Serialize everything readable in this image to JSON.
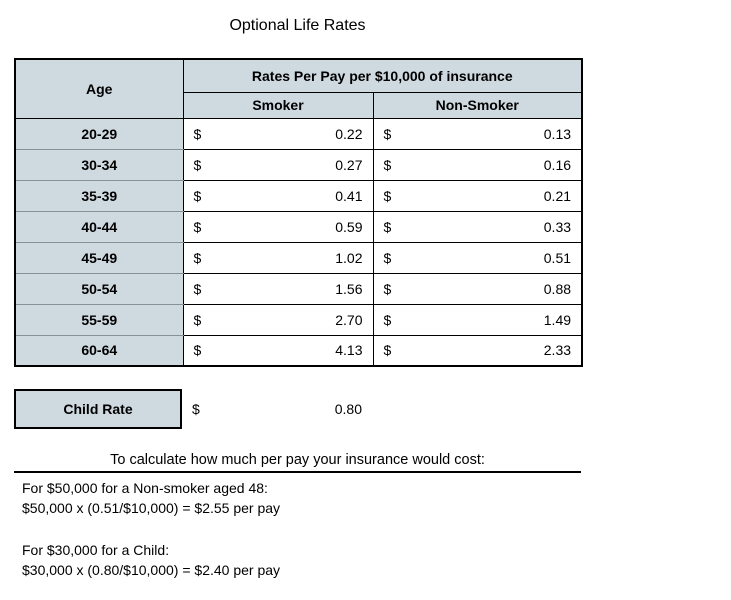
{
  "title": "Optional Life Rates",
  "colors": {
    "header_bg": "#cfd9e0",
    "border": "#000000",
    "age_row_separator": "#849198"
  },
  "rate_table": {
    "age_header": "Age",
    "group_header": "Rates Per Pay per $10,000 of insurance",
    "sub_headers": [
      "Smoker",
      "Non-Smoker"
    ],
    "currency_symbol": "$",
    "rows": [
      {
        "age": "20-29",
        "smoker": "0.22",
        "non_smoker": "0.13"
      },
      {
        "age": "30-34",
        "smoker": "0.27",
        "non_smoker": "0.16"
      },
      {
        "age": "35-39",
        "smoker": "0.41",
        "non_smoker": "0.21"
      },
      {
        "age": "40-44",
        "smoker": "0.59",
        "non_smoker": "0.33"
      },
      {
        "age": "45-49",
        "smoker": "1.02",
        "non_smoker": "0.51"
      },
      {
        "age": "50-54",
        "smoker": "1.56",
        "non_smoker": "0.88"
      },
      {
        "age": "55-59",
        "smoker": "2.70",
        "non_smoker": "1.49"
      },
      {
        "age": "60-64",
        "smoker": "4.13",
        "non_smoker": "2.33"
      }
    ]
  },
  "child_rate": {
    "label": "Child Rate",
    "currency_symbol": "$",
    "value": "0.80"
  },
  "calculation": {
    "heading": "To calculate how much per pay your insurance would cost:",
    "examples": [
      {
        "intro": "For $50,000 for a Non-smoker aged 48:",
        "formula": "$50,000 x (0.51/$10,000) = $2.55 per pay"
      },
      {
        "intro": "For $30,000 for a Child:",
        "formula": "$30,000 x (0.80/$10,000) = $2.40 per pay"
      }
    ]
  }
}
